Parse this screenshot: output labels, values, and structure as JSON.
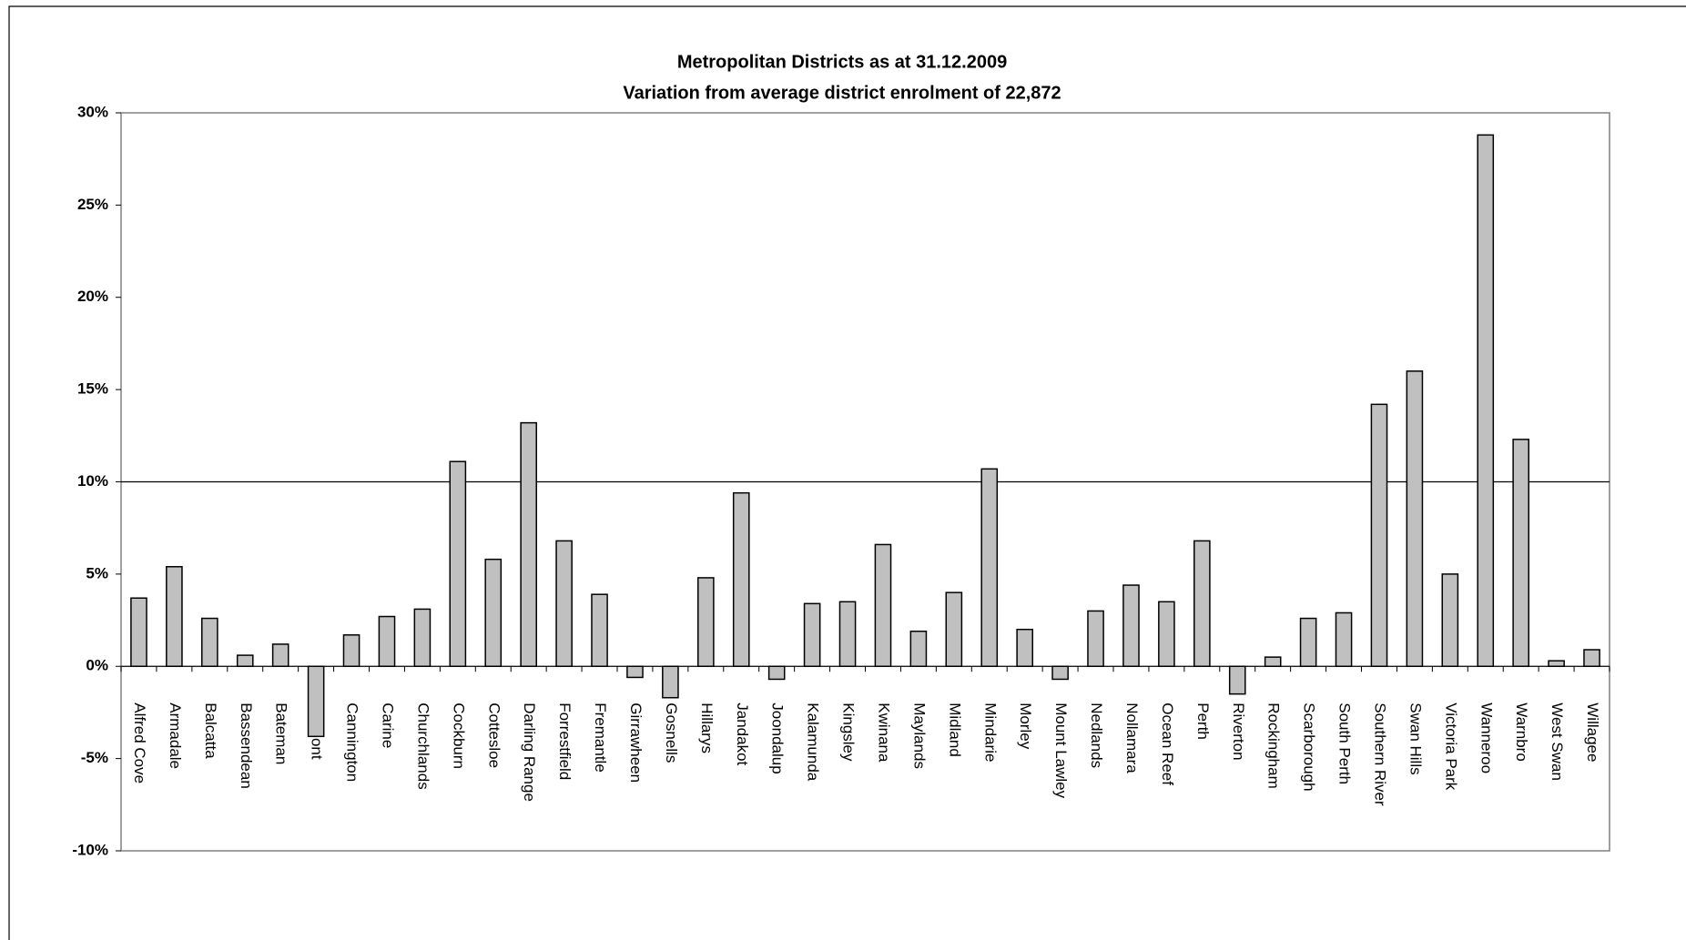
{
  "chart_data": {
    "type": "bar",
    "title": "Metropolitan Districts as at 31.12.2009",
    "subtitle": "Variation from average district enrolment of 22,872",
    "categories": [
      "Alfred Cove",
      "Armadale",
      "Balcatta",
      "Bassendean",
      "Bateman",
      "Belmont",
      "Cannington",
      "Carine",
      "Churchlands",
      "Cockburn",
      "Cottesloe",
      "Darling Range",
      "Forrestfield",
      "Fremantle",
      "Girrawheen",
      "Gosnells",
      "Hillarys",
      "Jandakot",
      "Joondalup",
      "Kalamunda",
      "Kingsley",
      "Kwinana",
      "Maylands",
      "Midland",
      "Mindarie",
      "Morley",
      "Mount Lawley",
      "Nedlands",
      "Nollamara",
      "Ocean Reef",
      "Perth",
      "Riverton",
      "Rockingham",
      "Scarborough",
      "South Perth",
      "Southern River",
      "Swan Hills",
      "Victoria Park",
      "Wanneroo",
      "Warnbro",
      "West Swan",
      "Willagee"
    ],
    "values": [
      3.7,
      5.4,
      2.6,
      0.6,
      1.2,
      -3.8,
      1.7,
      2.7,
      3.1,
      11.1,
      5.8,
      13.2,
      6.8,
      3.9,
      -0.6,
      -1.7,
      4.8,
      9.4,
      -0.7,
      3.4,
      3.5,
      6.6,
      1.9,
      4.0,
      10.7,
      2.0,
      -0.7,
      3.0,
      4.4,
      3.5,
      6.8,
      -1.5,
      0.5,
      2.6,
      2.9,
      14.2,
      16.0,
      5.0,
      28.8,
      12.3,
      0.3,
      0.9
    ],
    "color": "#c0c0c0",
    "ylim": [
      -10,
      30
    ],
    "yticks": [
      {
        "value": -10,
        "label": "-10%"
      },
      {
        "value": -5,
        "label": "-5%"
      },
      {
        "value": 0,
        "label": "0%"
      },
      {
        "value": 5,
        "label": "5%"
      },
      {
        "value": 10,
        "label": "10%"
      },
      {
        "value": 15,
        "label": "15%"
      },
      {
        "value": 20,
        "label": "20%"
      },
      {
        "value": 25,
        "label": "25%"
      },
      {
        "value": 30,
        "label": "30%"
      }
    ],
    "reference_line": 10,
    "grid": false
  }
}
